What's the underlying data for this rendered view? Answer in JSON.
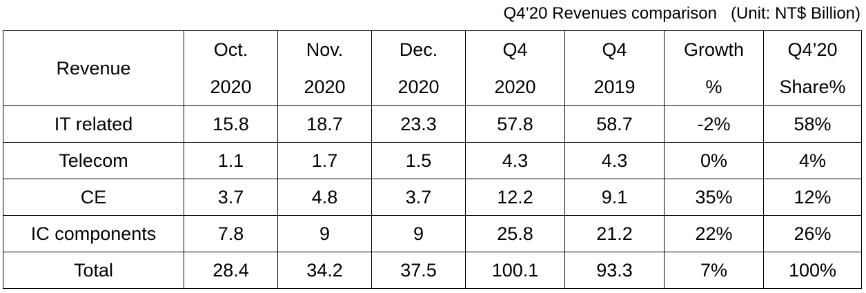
{
  "caption": "Q4’20 Revenues comparison   (Unit: NT$ Billion)",
  "table": {
    "header": {
      "revenue": "Revenue",
      "columns": [
        {
          "line1": "Oct.",
          "line2": "2020"
        },
        {
          "line1": "Nov.",
          "line2": "2020"
        },
        {
          "line1": "Dec.",
          "line2": "2020"
        },
        {
          "line1": "Q4",
          "line2": "2020"
        },
        {
          "line1": "Q4",
          "line2": "2019"
        },
        {
          "line1": "Growth",
          "line2": "%"
        },
        {
          "line1": "Q4’20",
          "line2": "Share%"
        }
      ]
    },
    "rows": [
      {
        "label": "IT related",
        "cells": [
          "15.8",
          "18.7",
          "23.3",
          "57.8",
          "58.7",
          "-2%",
          "58%"
        ]
      },
      {
        "label": "Telecom",
        "cells": [
          "1.1",
          "1.7",
          "1.5",
          "4.3",
          "4.3",
          "0%",
          "4%"
        ]
      },
      {
        "label": "CE",
        "cells": [
          "3.7",
          "4.8",
          "3.7",
          "12.2",
          "9.1",
          "35%",
          "12%"
        ]
      },
      {
        "label": "IC components",
        "cells": [
          "7.8",
          "9",
          "9",
          "25.8",
          "21.2",
          "22%",
          "26%"
        ]
      },
      {
        "label": "Total",
        "cells": [
          "28.4",
          "34.2",
          "37.5",
          "100.1",
          "93.3",
          "7%",
          "100%"
        ]
      }
    ]
  }
}
